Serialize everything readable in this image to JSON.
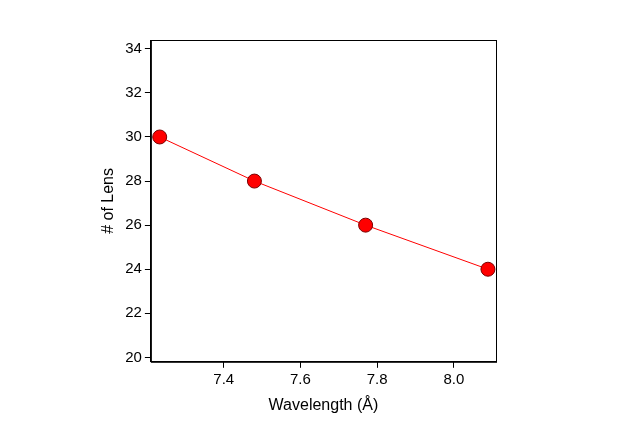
{
  "chart_data": {
    "type": "line",
    "x_label": "Wavelength (Å)",
    "y_label": "# of Lens",
    "series": [
      {
        "name": "# of Lens",
        "color": "#ff0000",
        "marker": "circle",
        "line_style": "solid",
        "x": [
          7.233,
          7.48,
          7.77,
          8.089
        ],
        "values": [
          30,
          28,
          26,
          24
        ]
      }
    ],
    "xlim": [
      7.21,
      8.11
    ],
    "xticks": [
      7.4,
      7.6,
      7.8,
      {
        "value": 8.0,
        "label": "8.0"
      }
    ],
    "ylim": [
      19.8,
      34.4
    ],
    "yticks": [
      20,
      22,
      24,
      26,
      28,
      30,
      32,
      34
    ],
    "grid": false
  }
}
